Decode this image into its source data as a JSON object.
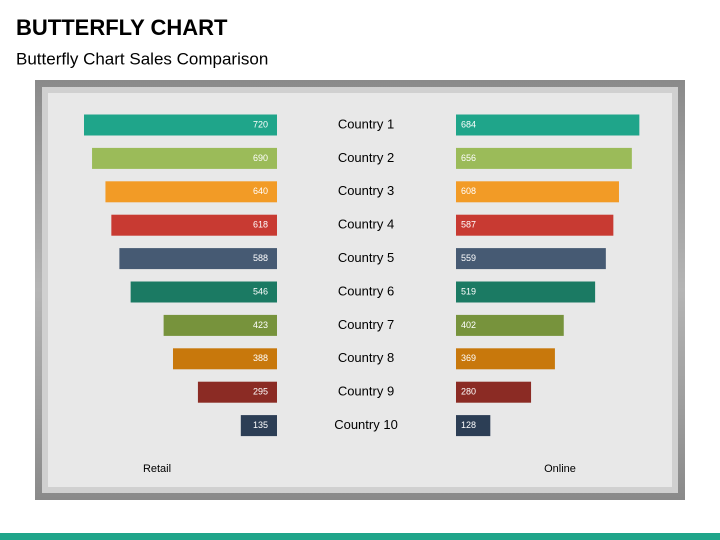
{
  "chart_data": {
    "type": "butterfly",
    "title": "BUTTERFLY CHART",
    "subtitle": "Butterfly Chart Sales Comparison",
    "categories": [
      "Country 1",
      "Country 2",
      "Country 3",
      "Country 4",
      "Country 5",
      "Country 6",
      "Country 7",
      "Country 8",
      "Country 9",
      "Country 10"
    ],
    "colors": [
      "#1fa58a",
      "#9bbb59",
      "#f29b26",
      "#c83a32",
      "#465a73",
      "#1b7a63",
      "#77933c",
      "#c8780c",
      "#8b2b24",
      "#2c3e55"
    ],
    "series": [
      {
        "name": "Retail",
        "values": [
          720,
          690,
          640,
          618,
          588,
          546,
          423,
          388,
          295,
          135
        ]
      },
      {
        "name": "Online",
        "values": [
          684,
          656,
          608,
          587,
          559,
          519,
          402,
          369,
          280,
          128
        ]
      }
    ],
    "xlim": [
      0,
      720
    ]
  }
}
